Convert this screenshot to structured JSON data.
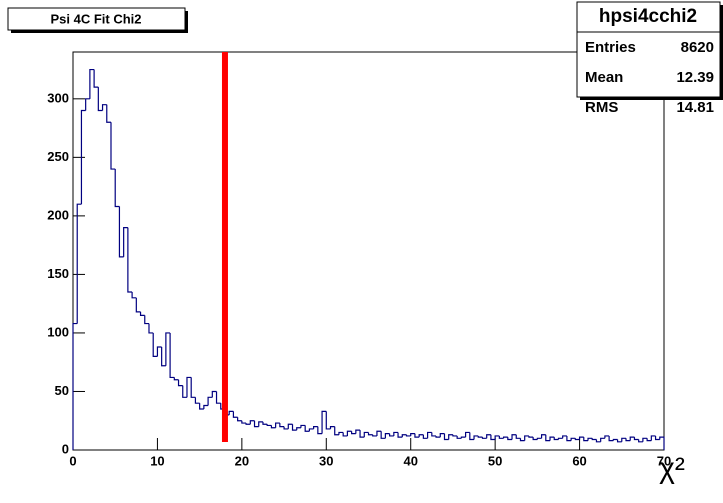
{
  "chart_data": {
    "type": "histogram",
    "title": "Psi 4C Fit Chi2",
    "x_label": "χ²",
    "stats": {
      "name": "hpsi4cchi2",
      "rows": [
        [
          "Entries",
          "8620"
        ],
        [
          "Mean",
          "12.39"
        ],
        [
          "RMS",
          "14.81"
        ]
      ]
    },
    "bins": [
      0,
      0.5,
      1,
      1.5,
      2,
      2.5,
      3,
      3.5,
      4,
      4.5,
      5,
      5.5,
      6,
      6.5,
      7,
      7.5,
      8,
      8.5,
      9,
      9.5,
      10,
      10.5,
      11,
      11.5,
      12,
      12.5,
      13,
      13.5,
      14,
      14.5,
      15,
      15.5,
      16,
      16.5,
      17,
      17.5,
      18,
      18.5,
      19,
      19.5,
      20,
      20.5,
      21,
      21.5,
      22,
      22.5,
      23,
      23.5,
      24,
      24.5,
      25,
      25.5,
      26,
      26.5,
      27,
      27.5,
      28,
      28.5,
      29,
      29.5,
      30,
      30.5,
      31,
      31.5,
      32,
      32.5,
      33,
      33.5,
      34,
      34.5,
      35,
      35.5,
      36,
      36.5,
      37,
      37.5,
      38,
      38.5,
      39,
      39.5,
      40,
      40.5,
      41,
      41.5,
      42,
      42.5,
      43,
      43.5,
      44,
      44.5,
      45,
      45.5,
      46,
      46.5,
      47,
      47.5,
      48,
      48.5,
      49,
      49.5,
      50,
      50.5,
      51,
      51.5,
      52,
      52.5,
      53,
      53.5,
      54,
      54.5,
      55,
      55.5,
      56,
      56.5,
      57,
      57.5,
      58,
      58.5,
      59,
      59.5,
      60,
      60.5,
      61,
      61.5,
      62,
      62.5,
      63,
      63.5,
      64,
      64.5,
      65,
      65.5,
      66,
      66.5,
      67,
      67.5,
      68,
      68.5,
      69,
      69.5,
      70
    ],
    "values": [
      108,
      210,
      290,
      300,
      325,
      310,
      290,
      295,
      280,
      240,
      208,
      165,
      190,
      135,
      130,
      118,
      115,
      108,
      100,
      80,
      88,
      72,
      100,
      62,
      60,
      55,
      45,
      62,
      45,
      40,
      35,
      38,
      45,
      50,
      40,
      35,
      30,
      33,
      28,
      25,
      23,
      22,
      25,
      20,
      24,
      22,
      21,
      19,
      23,
      20,
      18,
      22,
      17,
      19,
      21,
      16,
      18,
      20,
      14,
      33,
      18,
      20,
      13,
      15,
      12,
      16,
      14,
      17,
      11,
      15,
      13,
      12,
      16,
      10,
      14,
      12,
      15,
      11,
      13,
      12,
      14,
      11,
      13,
      10,
      15,
      12,
      11,
      14,
      9,
      13,
      12,
      10,
      11,
      15,
      9,
      12,
      11,
      10,
      13,
      9,
      12,
      10,
      11,
      9,
      13,
      10,
      8,
      12,
      11,
      9,
      10,
      13,
      8,
      11,
      9,
      10,
      12,
      8,
      10,
      9,
      11,
      8,
      10,
      9,
      7,
      10,
      12,
      8,
      9,
      7,
      10,
      8,
      11,
      9,
      7,
      10,
      8,
      12,
      9,
      11
    ],
    "color": "#000080",
    "cut_line": {
      "x": 18,
      "color": "#ff0000"
    },
    "xlim": [
      0,
      70
    ],
    "xticks": [
      0,
      10,
      20,
      30,
      40,
      50,
      60,
      70
    ],
    "ylim": [
      0,
      340
    ],
    "yticks": [
      0,
      50,
      100,
      150,
      200,
      250,
      300
    ]
  }
}
